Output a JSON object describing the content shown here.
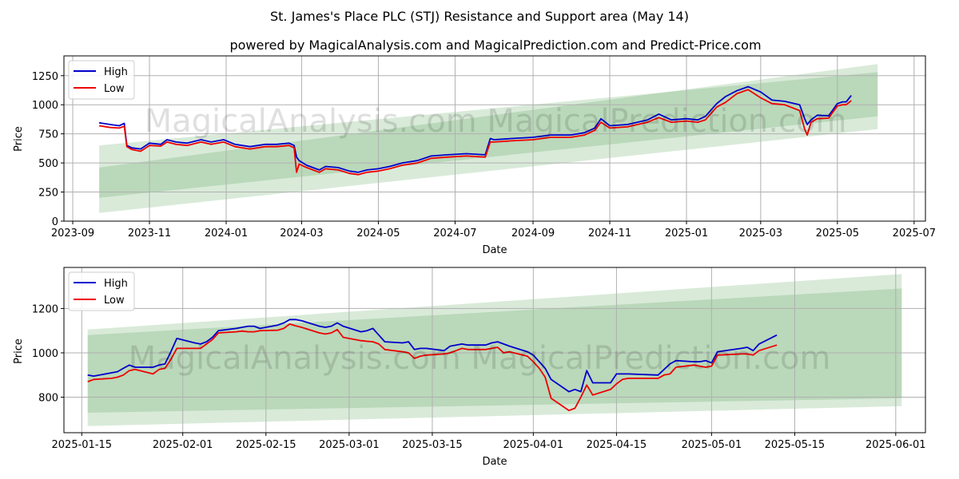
{
  "title": "St. James's Place PLC (STJ) Resistance and Support area (May 14)",
  "subtitle": "powered by MagicalAnalysis.com and MagicalPrediction.com and Predict-Price.com",
  "watermark": "MagicalAnalysis.com    MagicalPrediction.com",
  "colors": {
    "high": "#0000cc",
    "low": "#ee0000",
    "band": "#2e8b2e"
  },
  "chart_data": [
    {
      "type": "line",
      "xlabel": "Date",
      "ylabel": "Price",
      "xlim": [
        "2023-08-25",
        "2025-07-10"
      ],
      "ylim": [
        0,
        1420
      ],
      "x_ticks": [
        "2023-09-01",
        "2023-11-01",
        "2024-01-01",
        "2024-03-01",
        "2024-05-01",
        "2024-07-01",
        "2024-09-01",
        "2024-11-01",
        "2025-01-01",
        "2025-03-01",
        "2025-05-01",
        "2025-07-01"
      ],
      "x_tick_labels": [
        "2023-09",
        "2023-11",
        "2024-01",
        "2024-03",
        "2024-05",
        "2024-07",
        "2024-09",
        "2024-11",
        "2025-01",
        "2025-03",
        "2025-05",
        "2025-07"
      ],
      "y_ticks": [
        0,
        250,
        500,
        750,
        1000,
        1250
      ],
      "legend": {
        "position": "top-left",
        "entries": [
          "High",
          "Low"
        ]
      },
      "grid": true,
      "bands": [
        {
          "x": [
            "2023-09-22",
            "2025-06-02"
          ],
          "lower": [
            200,
            900
          ],
          "upper": [
            650,
            1280
          ],
          "opacity": 0.18
        },
        {
          "x": [
            "2023-09-22",
            "2025-06-02"
          ],
          "lower": [
            70,
            790
          ],
          "upper": [
            460,
            1350
          ],
          "opacity": 0.18
        }
      ],
      "series": [
        {
          "name": "High",
          "x": [
            "2023-09-22",
            "2023-10-01",
            "2023-10-08",
            "2023-10-12",
            "2023-10-14",
            "2023-10-18",
            "2023-10-25",
            "2023-11-01",
            "2023-11-10",
            "2023-11-15",
            "2023-11-22",
            "2023-12-01",
            "2023-12-12",
            "2023-12-20",
            "2023-12-30",
            "2024-01-08",
            "2024-01-20",
            "2024-02-01",
            "2024-02-10",
            "2024-02-20",
            "2024-02-24",
            "2024-02-26",
            "2024-02-28",
            "2024-03-05",
            "2024-03-15",
            "2024-03-20",
            "2024-03-30",
            "2024-04-08",
            "2024-04-15",
            "2024-04-22",
            "2024-05-01",
            "2024-05-10",
            "2024-05-20",
            "2024-06-01",
            "2024-06-12",
            "2024-06-25",
            "2024-07-10",
            "2024-07-25",
            "2024-07-29",
            "2024-08-01",
            "2024-08-15",
            "2024-09-01",
            "2024-09-15",
            "2024-10-01",
            "2024-10-12",
            "2024-10-20",
            "2024-10-25",
            "2024-11-01",
            "2024-11-15",
            "2024-12-01",
            "2024-12-10",
            "2024-12-20",
            "2025-01-01",
            "2025-01-10",
            "2025-01-16",
            "2025-01-25",
            "2025-02-01",
            "2025-02-10",
            "2025-02-19",
            "2025-03-01",
            "2025-03-10",
            "2025-03-20",
            "2025-04-01",
            "2025-04-05",
            "2025-04-07",
            "2025-04-10",
            "2025-04-15",
            "2025-04-24",
            "2025-05-01",
            "2025-05-05",
            "2025-05-08",
            "2025-05-12"
          ],
          "values": [
            845,
            830,
            820,
            840,
            650,
            630,
            620,
            670,
            660,
            700,
            680,
            670,
            700,
            680,
            700,
            660,
            640,
            660,
            660,
            670,
            650,
            550,
            520,
            480,
            440,
            470,
            460,
            430,
            420,
            440,
            450,
            470,
            500,
            520,
            560,
            570,
            580,
            570,
            710,
            700,
            710,
            720,
            740,
            740,
            760,
            800,
            880,
            820,
            830,
            870,
            920,
            870,
            880,
            870,
            900,
            1010,
            1070,
            1120,
            1155,
            1110,
            1040,
            1030,
            1000,
            880,
            830,
            870,
            910,
            905,
            1010,
            1025,
            1025,
            1080
          ]
        },
        {
          "name": "Low",
          "x": [
            "2023-09-22",
            "2023-10-01",
            "2023-10-08",
            "2023-10-12",
            "2023-10-14",
            "2023-10-18",
            "2023-10-25",
            "2023-11-01",
            "2023-11-10",
            "2023-11-15",
            "2023-11-22",
            "2023-12-01",
            "2023-12-12",
            "2023-12-20",
            "2023-12-30",
            "2024-01-08",
            "2024-01-20",
            "2024-02-01",
            "2024-02-10",
            "2024-02-20",
            "2024-02-24",
            "2024-02-26",
            "2024-02-28",
            "2024-03-05",
            "2024-03-15",
            "2024-03-20",
            "2024-03-30",
            "2024-04-08",
            "2024-04-15",
            "2024-04-22",
            "2024-05-01",
            "2024-05-10",
            "2024-05-20",
            "2024-06-01",
            "2024-06-12",
            "2024-06-25",
            "2024-07-10",
            "2024-07-25",
            "2024-07-29",
            "2024-08-01",
            "2024-08-15",
            "2024-09-01",
            "2024-09-15",
            "2024-10-01",
            "2024-10-12",
            "2024-10-20",
            "2024-10-25",
            "2024-11-01",
            "2024-11-15",
            "2024-12-01",
            "2024-12-10",
            "2024-12-20",
            "2025-01-01",
            "2025-01-10",
            "2025-01-16",
            "2025-01-25",
            "2025-02-01",
            "2025-02-10",
            "2025-02-19",
            "2025-03-01",
            "2025-03-10",
            "2025-03-20",
            "2025-04-01",
            "2025-04-05",
            "2025-04-07",
            "2025-04-10",
            "2025-04-15",
            "2025-04-24",
            "2025-05-01",
            "2025-05-05",
            "2025-05-08",
            "2025-05-12"
          ],
          "values": [
            820,
            805,
            800,
            815,
            640,
            615,
            600,
            650,
            645,
            680,
            660,
            650,
            680,
            660,
            680,
            640,
            620,
            640,
            640,
            650,
            630,
            420,
            490,
            460,
            420,
            450,
            440,
            410,
            400,
            420,
            430,
            450,
            480,
            500,
            540,
            550,
            560,
            550,
            680,
            680,
            690,
            700,
            720,
            720,
            740,
            780,
            850,
            800,
            810,
            850,
            890,
            850,
            860,
            850,
            870,
            980,
            1020,
            1095,
            1130,
            1060,
            1010,
            1000,
            950,
            790,
            740,
            850,
            880,
            885,
            990,
            1000,
            1000,
            1035
          ]
        }
      ]
    },
    {
      "type": "line",
      "xlabel": "Date",
      "ylabel": "Price",
      "xlim": [
        "2025-01-12",
        "2025-06-06"
      ],
      "ylim": [
        640,
        1385
      ],
      "x_ticks": [
        "2025-01-15",
        "2025-02-01",
        "2025-02-15",
        "2025-03-01",
        "2025-03-15",
        "2025-04-01",
        "2025-04-15",
        "2025-05-01",
        "2025-05-15",
        "2025-06-01"
      ],
      "y_ticks": [
        800,
        1000,
        1200
      ],
      "legend": {
        "position": "top-left",
        "entries": [
          "High",
          "Low"
        ]
      },
      "grid": true,
      "bands": [
        {
          "x": [
            "2025-01-16",
            "2025-06-02"
          ],
          "lower": [
            730,
            795
          ],
          "upper": [
            1080,
            1290
          ],
          "opacity": 0.18
        },
        {
          "x": [
            "2025-01-16",
            "2025-06-02"
          ],
          "lower": [
            670,
            760
          ],
          "upper": [
            1105,
            1355
          ],
          "opacity": 0.18
        }
      ],
      "series": [
        {
          "name": "High",
          "x": [
            "2025-01-16",
            "2025-01-17",
            "2025-01-20",
            "2025-01-21",
            "2025-01-22",
            "2025-01-23",
            "2025-01-24",
            "2025-01-27",
            "2025-01-28",
            "2025-01-29",
            "2025-01-30",
            "2025-01-31",
            "2025-02-03",
            "2025-02-04",
            "2025-02-05",
            "2025-02-06",
            "2025-02-07",
            "2025-02-10",
            "2025-02-11",
            "2025-02-12",
            "2025-02-13",
            "2025-02-14",
            "2025-02-17",
            "2025-02-18",
            "2025-02-19",
            "2025-02-20",
            "2025-02-21",
            "2025-02-24",
            "2025-02-25",
            "2025-02-26",
            "2025-02-27",
            "2025-02-28",
            "2025-03-03",
            "2025-03-04",
            "2025-03-05",
            "2025-03-06",
            "2025-03-07",
            "2025-03-10",
            "2025-03-11",
            "2025-03-12",
            "2025-03-13",
            "2025-03-14",
            "2025-03-17",
            "2025-03-18",
            "2025-03-19",
            "2025-03-20",
            "2025-03-21",
            "2025-03-24",
            "2025-03-25",
            "2025-03-26",
            "2025-03-27",
            "2025-03-28",
            "2025-03-31",
            "2025-04-01",
            "2025-04-02",
            "2025-04-03",
            "2025-04-04",
            "2025-04-07",
            "2025-04-08",
            "2025-04-09",
            "2025-04-10",
            "2025-04-11",
            "2025-04-14",
            "2025-04-15",
            "2025-04-16",
            "2025-04-17",
            "2025-04-22",
            "2025-04-23",
            "2025-04-24",
            "2025-04-25",
            "2025-04-28",
            "2025-04-29",
            "2025-04-30",
            "2025-05-01",
            "2025-05-02",
            "2025-05-06",
            "2025-05-07",
            "2025-05-08",
            "2025-05-09",
            "2025-05-12"
          ],
          "values": [
            900,
            895,
            910,
            915,
            930,
            945,
            935,
            935,
            945,
            950,
            1005,
            1065,
            1045,
            1040,
            1050,
            1070,
            1100,
            1110,
            1115,
            1120,
            1120,
            1110,
            1125,
            1135,
            1150,
            1150,
            1145,
            1120,
            1115,
            1120,
            1135,
            1120,
            1095,
            1100,
            1110,
            1080,
            1050,
            1045,
            1050,
            1015,
            1020,
            1020,
            1010,
            1030,
            1035,
            1040,
            1035,
            1035,
            1045,
            1050,
            1040,
            1030,
            1005,
            990,
            960,
            930,
            880,
            825,
            835,
            825,
            920,
            865,
            865,
            905,
            905,
            905,
            900,
            925,
            950,
            965,
            960,
            960,
            965,
            955,
            1005,
            1020,
            1025,
            1010,
            1040,
            1080
          ]
        },
        {
          "name": "Low",
          "x": [
            "2025-01-16",
            "2025-01-17",
            "2025-01-20",
            "2025-01-21",
            "2025-01-22",
            "2025-01-23",
            "2025-01-24",
            "2025-01-27",
            "2025-01-28",
            "2025-01-29",
            "2025-01-30",
            "2025-01-31",
            "2025-02-03",
            "2025-02-04",
            "2025-02-05",
            "2025-02-06",
            "2025-02-07",
            "2025-02-10",
            "2025-02-11",
            "2025-02-12",
            "2025-02-13",
            "2025-02-14",
            "2025-02-17",
            "2025-02-18",
            "2025-02-19",
            "2025-02-20",
            "2025-02-21",
            "2025-02-24",
            "2025-02-25",
            "2025-02-26",
            "2025-02-27",
            "2025-02-28",
            "2025-03-03",
            "2025-03-04",
            "2025-03-05",
            "2025-03-06",
            "2025-03-07",
            "2025-03-10",
            "2025-03-11",
            "2025-03-12",
            "2025-03-13",
            "2025-03-14",
            "2025-03-17",
            "2025-03-18",
            "2025-03-19",
            "2025-03-20",
            "2025-03-21",
            "2025-03-24",
            "2025-03-25",
            "2025-03-26",
            "2025-03-27",
            "2025-03-28",
            "2025-03-31",
            "2025-04-01",
            "2025-04-02",
            "2025-04-03",
            "2025-04-04",
            "2025-04-07",
            "2025-04-08",
            "2025-04-09",
            "2025-04-10",
            "2025-04-11",
            "2025-04-14",
            "2025-04-15",
            "2025-04-16",
            "2025-04-17",
            "2025-04-22",
            "2025-04-23",
            "2025-04-24",
            "2025-04-25",
            "2025-04-28",
            "2025-04-29",
            "2025-04-30",
            "2025-05-01",
            "2025-05-02",
            "2025-05-06",
            "2025-05-07",
            "2025-05-08",
            "2025-05-09",
            "2025-05-12"
          ],
          "values": [
            870,
            880,
            885,
            890,
            900,
            920,
            925,
            905,
            925,
            930,
            970,
            1020,
            1020,
            1020,
            1040,
            1060,
            1090,
            1095,
            1098,
            1095,
            1095,
            1100,
            1102,
            1110,
            1130,
            1122,
            1115,
            1090,
            1085,
            1090,
            1105,
            1070,
            1055,
            1052,
            1050,
            1040,
            1015,
            1005,
            1000,
            975,
            985,
            990,
            995,
            1000,
            1010,
            1020,
            1015,
            1015,
            1020,
            1025,
            1000,
            1005,
            985,
            960,
            930,
            890,
            795,
            740,
            750,
            800,
            855,
            810,
            835,
            860,
            880,
            885,
            885,
            900,
            905,
            935,
            945,
            940,
            935,
            940,
            990,
            995,
            995,
            990,
            1010,
            1035
          ]
        }
      ]
    }
  ]
}
